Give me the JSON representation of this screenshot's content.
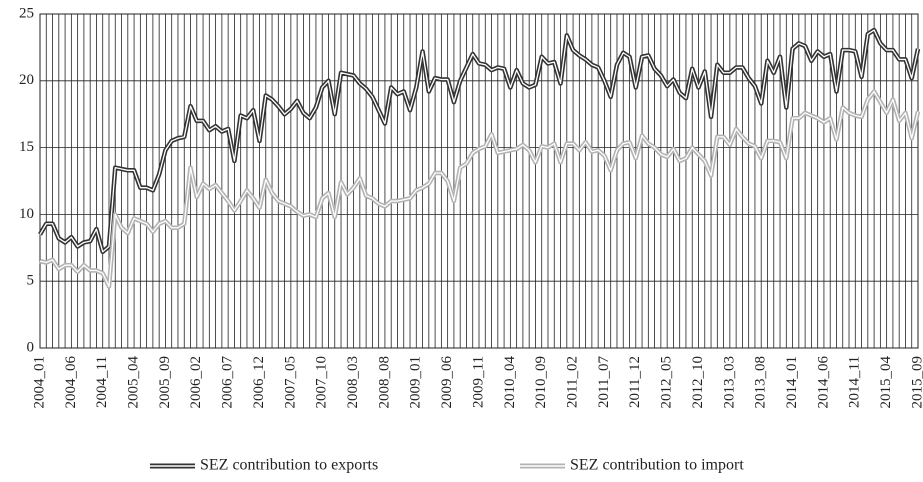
{
  "chart_data": {
    "type": "line",
    "categories": [
      "2004_01",
      null,
      null,
      null,
      null,
      "2004_06",
      null,
      null,
      null,
      null,
      "2004_11",
      null,
      null,
      null,
      null,
      "2005_04",
      null,
      null,
      null,
      null,
      "2005_09",
      null,
      null,
      null,
      null,
      "2006_02",
      null,
      null,
      null,
      null,
      "2006_07",
      null,
      null,
      null,
      null,
      "2006_12",
      null,
      null,
      null,
      null,
      "2007_05",
      null,
      null,
      null,
      null,
      "2007_10",
      null,
      null,
      null,
      null,
      "2008_03",
      null,
      null,
      null,
      null,
      "2008_08",
      null,
      null,
      null,
      null,
      "2009_01",
      null,
      null,
      null,
      null,
      "2009_06",
      null,
      null,
      null,
      null,
      "2009_11",
      null,
      null,
      null,
      null,
      "2010_04",
      null,
      null,
      null,
      null,
      "2010_09",
      null,
      null,
      null,
      null,
      "2011_02",
      null,
      null,
      null,
      null,
      "2011_07",
      null,
      null,
      null,
      null,
      "2011_12",
      null,
      null,
      null,
      null,
      "2012_05",
      null,
      null,
      null,
      null,
      "2012_10",
      null,
      null,
      null,
      null,
      "2013_03",
      null,
      null,
      null,
      null,
      "2013_08",
      null,
      null,
      null,
      null,
      "2014_01",
      null,
      null,
      null,
      null,
      "2014_06",
      null,
      null,
      null,
      null,
      "2014_11",
      null,
      null,
      null,
      null,
      "2015_04",
      null,
      null,
      null,
      null,
      "2015_09"
    ],
    "series": [
      {
        "name": "SEZ contribution to exports",
        "color": "#333333",
        "values": [
          8.5,
          9.3,
          9.3,
          8.2,
          7.9,
          8.3,
          7.6,
          7.9,
          8.0,
          8.9,
          7.2,
          7.6,
          13.5,
          13.4,
          13.3,
          13.3,
          12.0,
          12.0,
          11.8,
          13.0,
          14.8,
          15.5,
          15.7,
          15.8,
          18.1,
          17.0,
          17.0,
          16.3,
          16.6,
          16.2,
          16.4,
          14.0,
          17.4,
          17.2,
          17.8,
          15.5,
          18.9,
          18.6,
          18.1,
          17.5,
          17.9,
          18.5,
          17.6,
          17.2,
          18.0,
          19.5,
          20.0,
          17.5,
          20.6,
          20.5,
          20.4,
          19.8,
          19.4,
          18.8,
          17.8,
          16.8,
          19.5,
          19.0,
          19.2,
          17.8,
          19.5,
          22.2,
          19.2,
          20.2,
          20.1,
          20.1,
          18.4,
          20.0,
          21.0,
          22.0,
          21.3,
          21.2,
          20.8,
          21.0,
          20.9,
          19.5,
          20.8,
          19.8,
          19.5,
          19.7,
          21.8,
          21.3,
          21.4,
          19.8,
          23.4,
          22.3,
          21.9,
          21.6,
          21.2,
          21.0,
          20.0,
          18.8,
          21.2,
          22.1,
          21.8,
          19.5,
          21.8,
          21.9,
          20.9,
          20.4,
          19.6,
          20.1,
          19.1,
          18.7,
          20.9,
          19.5,
          20.7,
          17.3,
          21.2,
          20.6,
          20.6,
          21.0,
          21.0,
          20.2,
          19.6,
          18.3,
          21.5,
          20.6,
          21.8,
          18.0,
          22.4,
          22.8,
          22.6,
          21.5,
          22.2,
          21.8,
          22.0,
          19.2,
          22.3,
          22.3,
          22.2,
          20.3,
          23.5,
          23.8,
          22.8,
          22.3,
          22.3,
          21.6,
          21.6,
          20.2,
          22.4
        ]
      },
      {
        "name": "SEZ contribution to import",
        "color": "#b3b3b3",
        "values": [
          6.5,
          6.4,
          6.6,
          5.9,
          6.2,
          6.2,
          5.7,
          6.2,
          5.8,
          5.8,
          5.6,
          4.6,
          10.0,
          9.0,
          8.6,
          9.7,
          9.5,
          9.3,
          8.7,
          9.3,
          9.5,
          9.0,
          9.0,
          9.3,
          13.5,
          11.3,
          12.3,
          11.9,
          12.2,
          11.6,
          11.0,
          10.3,
          11.0,
          11.8,
          11.2,
          10.5,
          12.6,
          11.6,
          11.0,
          10.8,
          10.6,
          10.2,
          9.9,
          10.0,
          9.8,
          11.2,
          11.6,
          9.8,
          12.4,
          11.5,
          12.0,
          12.7,
          11.4,
          11.2,
          10.8,
          10.6,
          11.0,
          11.0,
          11.1,
          11.2,
          11.8,
          12.0,
          12.3,
          13.1,
          13.1,
          12.5,
          11.0,
          13.5,
          13.8,
          14.6,
          14.9,
          15.1,
          16.0,
          14.6,
          14.7,
          14.8,
          14.9,
          15.2,
          14.8,
          13.9,
          15.1,
          15.0,
          15.3,
          13.9,
          15.3,
          15.3,
          14.8,
          15.4,
          14.7,
          14.8,
          14.4,
          13.3,
          14.8,
          15.3,
          15.4,
          14.2,
          15.9,
          15.3,
          15.0,
          14.5,
          14.3,
          14.9,
          14.0,
          14.2,
          15.0,
          14.5,
          14.0,
          12.9,
          15.8,
          15.8,
          15.2,
          16.4,
          15.8,
          15.3,
          15.1,
          14.2,
          15.5,
          15.5,
          15.4,
          14.2,
          17.2,
          17.2,
          17.6,
          17.4,
          17.2,
          16.9,
          17.2,
          15.6,
          18.0,
          17.6,
          17.4,
          17.3,
          18.6,
          19.2,
          18.4,
          17.6,
          18.6,
          17.0,
          17.6,
          15.7,
          17.7
        ]
      }
    ],
    "ylim": [
      0,
      25
    ],
    "yticks": [
      0,
      5,
      10,
      15,
      20,
      25
    ],
    "grid": true,
    "legend": "bottom"
  }
}
